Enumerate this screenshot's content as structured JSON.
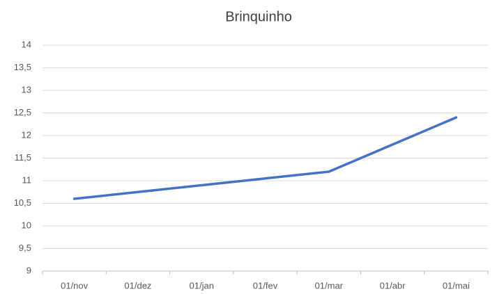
{
  "chart_data": {
    "type": "line",
    "title": "Brinquinho",
    "categories": [
      "01/nov",
      "01/dez",
      "01/jan",
      "01/fev",
      "01/mar",
      "01/abr",
      "01/mai"
    ],
    "series": [
      {
        "name": "Brinquinho",
        "color": "#4472c4",
        "values": [
          10.6,
          10.75,
          10.9,
          11.05,
          11.2,
          11.8,
          12.4
        ]
      }
    ],
    "ylim": [
      9,
      14
    ],
    "yticks": [
      9,
      {
        "value": 9.5,
        "label": "9,5"
      },
      10,
      {
        "value": 10.5,
        "label": "10,5"
      },
      11,
      {
        "value": 11.5,
        "label": "11,5"
      },
      12,
      {
        "value": 12.5,
        "label": "12,5"
      },
      13,
      {
        "value": 13.5,
        "label": "13,5"
      },
      14
    ],
    "grid": true
  }
}
